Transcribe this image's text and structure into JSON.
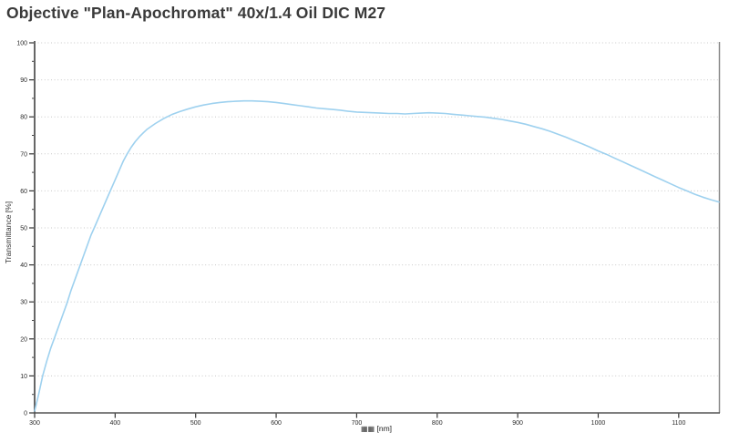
{
  "title": "Objective \"Plan-Apochromat\" 40x/1.4 Oil DIC M27",
  "chart_data": {
    "type": "line",
    "title": "Objective \"Plan-Apochromat\" 40x/1.4 Oil DIC M27",
    "ylabel": "Transmittance [%]",
    "xlabel_missing_glyphs": "▦▦",
    "xlabel_unit": "[nm]",
    "xlim": [
      300,
      1150
    ],
    "ylim": [
      0,
      100
    ],
    "x_ticks": [
      300,
      400,
      500,
      600,
      700,
      800,
      900,
      1000,
      1100
    ],
    "y_ticks": [
      0,
      10,
      20,
      30,
      40,
      50,
      60,
      70,
      80,
      90,
      100
    ],
    "y_minor_step": 5,
    "grid": "horizontal dotted",
    "legend_position": "none",
    "series": [
      {
        "name": "Transmittance",
        "color": "#9ed1ef",
        "points": [
          [
            300,
            0.5
          ],
          [
            305,
            5
          ],
          [
            310,
            10
          ],
          [
            315,
            14
          ],
          [
            320,
            17.5
          ],
          [
            325,
            20.5
          ],
          [
            330,
            23.5
          ],
          [
            335,
            26.5
          ],
          [
            340,
            29.5
          ],
          [
            345,
            33
          ],
          [
            350,
            36
          ],
          [
            355,
            39
          ],
          [
            360,
            42
          ],
          [
            365,
            45
          ],
          [
            370,
            48
          ],
          [
            375,
            50.5
          ],
          [
            380,
            53
          ],
          [
            385,
            55.5
          ],
          [
            390,
            58
          ],
          [
            395,
            60.5
          ],
          [
            400,
            63
          ],
          [
            405,
            65.5
          ],
          [
            410,
            68
          ],
          [
            415,
            70
          ],
          [
            420,
            71.8
          ],
          [
            425,
            73.3
          ],
          [
            430,
            74.6
          ],
          [
            435,
            75.7
          ],
          [
            440,
            76.7
          ],
          [
            450,
            78.2
          ],
          [
            460,
            79.5
          ],
          [
            470,
            80.6
          ],
          [
            480,
            81.4
          ],
          [
            490,
            82.1
          ],
          [
            500,
            82.7
          ],
          [
            510,
            83.2
          ],
          [
            520,
            83.6
          ],
          [
            530,
            83.9
          ],
          [
            540,
            84.1
          ],
          [
            550,
            84.2
          ],
          [
            560,
            84.3
          ],
          [
            570,
            84.3
          ],
          [
            580,
            84.2
          ],
          [
            590,
            84.1
          ],
          [
            600,
            83.9
          ],
          [
            610,
            83.6
          ],
          [
            620,
            83.3
          ],
          [
            630,
            83
          ],
          [
            640,
            82.7
          ],
          [
            650,
            82.4
          ],
          [
            660,
            82.2
          ],
          [
            670,
            82
          ],
          [
            680,
            81.8
          ],
          [
            690,
            81.5
          ],
          [
            700,
            81.3
          ],
          [
            710,
            81.2
          ],
          [
            720,
            81.1
          ],
          [
            730,
            81
          ],
          [
            740,
            80.9
          ],
          [
            750,
            80.9
          ],
          [
            760,
            80.8
          ],
          [
            770,
            80.9
          ],
          [
            780,
            81
          ],
          [
            790,
            81.1
          ],
          [
            800,
            81
          ],
          [
            810,
            80.9
          ],
          [
            820,
            80.7
          ],
          [
            830,
            80.5
          ],
          [
            840,
            80.3
          ],
          [
            850,
            80.1
          ],
          [
            860,
            79.9
          ],
          [
            870,
            79.6
          ],
          [
            880,
            79.3
          ],
          [
            890,
            78.9
          ],
          [
            900,
            78.5
          ],
          [
            910,
            78
          ],
          [
            920,
            77.4
          ],
          [
            930,
            76.8
          ],
          [
            940,
            76.1
          ],
          [
            950,
            75.3
          ],
          [
            960,
            74.5
          ],
          [
            970,
            73.6
          ],
          [
            980,
            72.7
          ],
          [
            990,
            71.8
          ],
          [
            1000,
            70.8
          ],
          [
            1010,
            69.9
          ],
          [
            1020,
            68.9
          ],
          [
            1030,
            67.9
          ],
          [
            1040,
            66.9
          ],
          [
            1050,
            65.9
          ],
          [
            1060,
            64.9
          ],
          [
            1070,
            63.9
          ],
          [
            1080,
            62.9
          ],
          [
            1090,
            61.9
          ],
          [
            1100,
            60.9
          ],
          [
            1110,
            60
          ],
          [
            1120,
            59.1
          ],
          [
            1130,
            58.3
          ],
          [
            1140,
            57.6
          ],
          [
            1150,
            57
          ]
        ]
      }
    ]
  },
  "colors": {
    "background": "#ffffff",
    "title_text": "#3a3a3a",
    "axis": "#666666",
    "right_border": "#8a8a8a",
    "grid": "#c9c9c9",
    "tick_text": "#2b2b2b",
    "curve": "#9ed1ef"
  }
}
